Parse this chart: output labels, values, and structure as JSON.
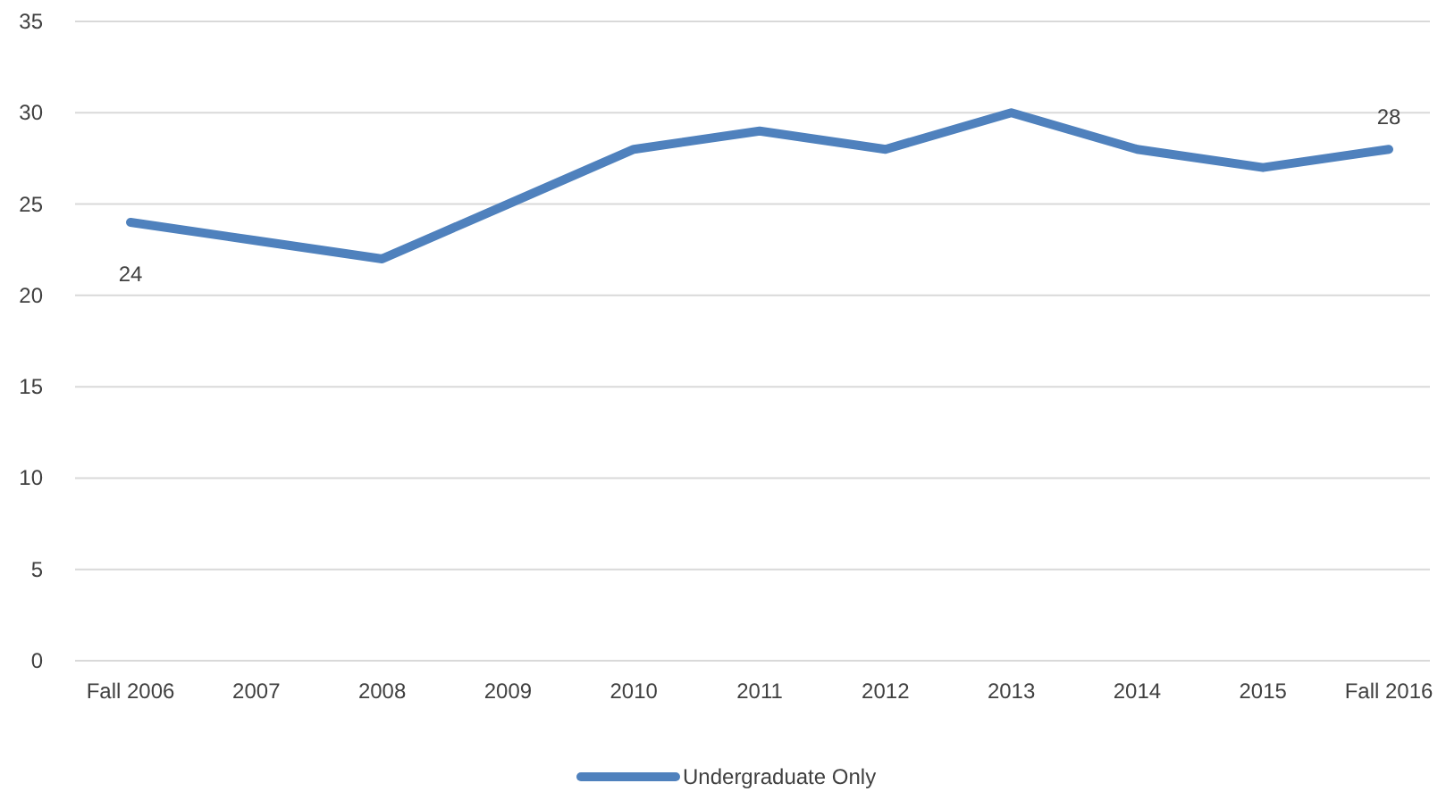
{
  "chart_data": {
    "type": "line",
    "categories": [
      "Fall 2006",
      "2007",
      "2008",
      "2009",
      "2010",
      "2011",
      "2012",
      "2013",
      "2014",
      "2015",
      "Fall 2016"
    ],
    "series": [
      {
        "name": "Undergraduate Only",
        "color": "#4f81bd",
        "values": [
          24,
          23,
          22,
          25,
          28,
          29,
          28,
          30,
          28,
          27,
          28
        ],
        "value_labels": [
          "24",
          null,
          null,
          null,
          null,
          null,
          null,
          null,
          null,
          null,
          "28"
        ]
      }
    ],
    "ylim": [
      0,
      35
    ],
    "yticks": [
      0,
      5,
      10,
      15,
      20,
      25,
      30,
      35
    ],
    "grid": "y",
    "legend": "bottom",
    "marker": "none",
    "line_style": "solid"
  }
}
